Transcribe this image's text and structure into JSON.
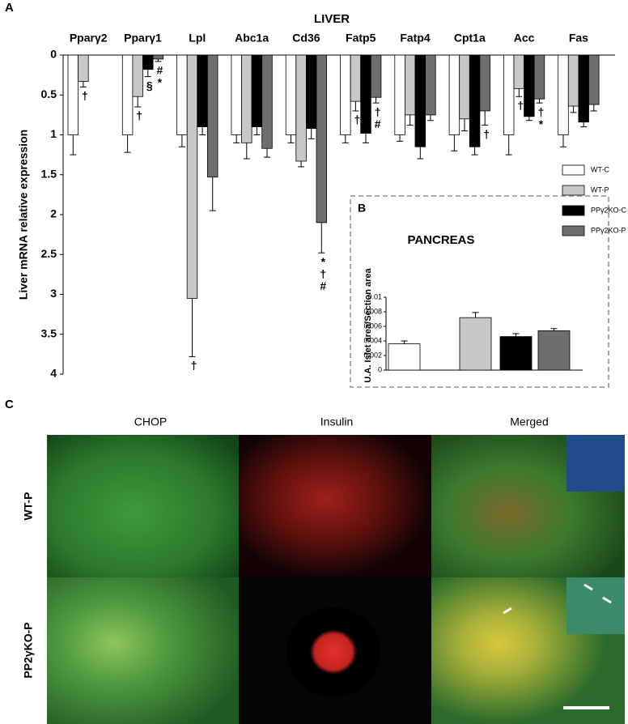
{
  "chart_data": [
    {
      "type": "bar",
      "panel": "A",
      "title": "LIVER",
      "y_label": "Liver mRNA relative expression",
      "y_inverted": true,
      "categories": [
        "Pparγ2",
        "Pparγ1",
        "Lpl",
        "Abc1a",
        "Cd36",
        "Fatp5",
        "Fatp4",
        "Cpt1a",
        "Acc",
        "Fas"
      ],
      "ylim": [
        0,
        4
      ],
      "yticks": [
        0,
        0.5,
        1,
        1.5,
        2,
        2.5,
        3,
        3.5,
        4
      ],
      "legend": "right",
      "series": [
        {
          "name": "WT-C",
          "color": "#ffffff",
          "values": [
            1,
            1,
            1,
            1,
            1,
            1,
            1,
            1,
            1,
            1
          ],
          "errors": [
            0.25,
            0.22,
            0.15,
            0.1,
            0.1,
            0.1,
            0.08,
            0.2,
            0.25,
            0.15
          ],
          "marks": [
            null,
            null,
            null,
            null,
            null,
            null,
            null,
            null,
            null,
            null
          ]
        },
        {
          "name": "WT-P",
          "color": "#c8c8c8",
          "values": [
            0.33,
            0.52,
            3.05,
            1.1,
            1.33,
            0.58,
            0.75,
            0.8,
            0.42,
            0.64
          ],
          "errors": [
            0.07,
            0.13,
            0.73,
            0.2,
            0.07,
            0.12,
            0.13,
            0.15,
            0.1,
            0.08
          ],
          "marks": [
            [
              "†"
            ],
            [
              "†"
            ],
            [
              "†"
            ],
            null,
            null,
            [
              "†"
            ],
            null,
            null,
            [
              "†"
            ],
            null
          ]
        },
        {
          "name": "PPγ2KO-C",
          "color": "#000000",
          "values": [
            null,
            0.18,
            0.9,
            0.9,
            0.92,
            0.98,
            1.15,
            1.15,
            0.77,
            0.84
          ],
          "errors": [
            null,
            0.09,
            0.1,
            0.1,
            0.13,
            0.12,
            0.15,
            0.1,
            0.05,
            0.06
          ],
          "marks": [
            null,
            [
              "§"
            ],
            null,
            null,
            null,
            null,
            null,
            null,
            null,
            null
          ]
        },
        {
          "name": "PPγ2KO-P",
          "color": "#6e6e6e",
          "values": [
            null,
            0.05,
            1.53,
            1.17,
            2.1,
            0.53,
            0.75,
            0.7,
            0.55,
            0.62
          ],
          "errors": [
            null,
            0.03,
            0.42,
            0.11,
            0.38,
            0.07,
            0.07,
            0.18,
            0.05,
            0.08
          ],
          "marks": [
            null,
            [
              "#",
              "*"
            ],
            null,
            null,
            [
              "*",
              "†",
              "#"
            ],
            [
              "†",
              "#"
            ],
            null,
            [
              "†"
            ],
            [
              "†",
              "*"
            ],
            null
          ]
        }
      ]
    },
    {
      "type": "bar",
      "panel": "B",
      "title": "PANCREAS",
      "y_label": "U.A. Islet area/Section area",
      "ylim": [
        0,
        0.01
      ],
      "yticks": [
        0,
        0.002,
        0.004,
        0.006,
        0.008,
        0.01
      ],
      "values": [
        0.0036,
        0.0072,
        0.0046,
        0.0054
      ],
      "errors": [
        0.0004,
        0.0007,
        0.0004,
        0.0003
      ],
      "colors": [
        "#ffffff",
        "#c8c8c8",
        "#000000",
        "#6e6e6e"
      ]
    }
  ],
  "panel_c": {
    "label": "C",
    "columns": [
      "CHOP",
      "Insulin",
      "Merged"
    ],
    "rows": [
      "WT-P",
      "PP2γKO-P"
    ]
  }
}
